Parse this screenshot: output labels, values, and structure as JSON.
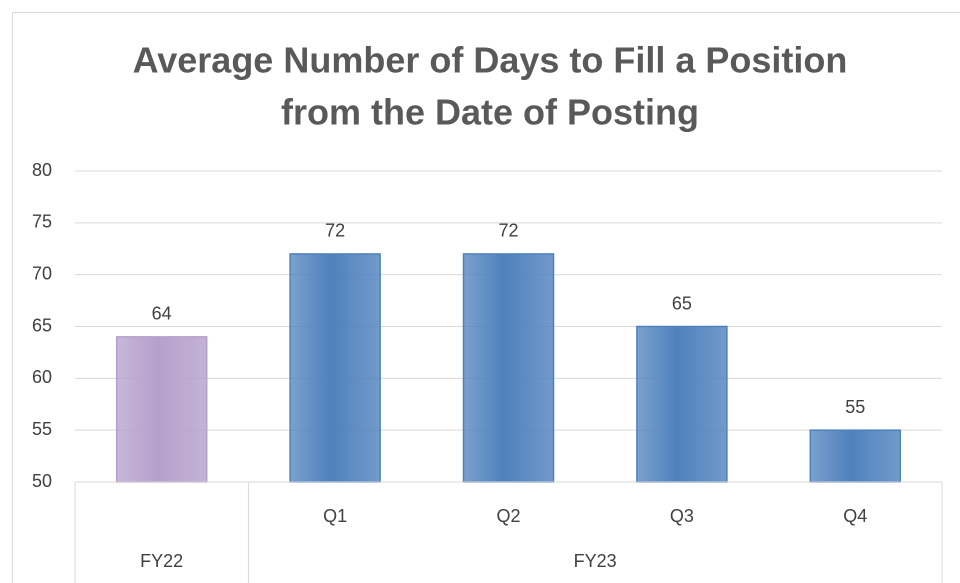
{
  "chart_data": {
    "type": "bar",
    "title": [
      "Average Number of Days to Fill a Position",
      "from the Date of Posting"
    ],
    "categories": [
      null,
      "Q1",
      "Q2",
      "Q3",
      "Q4"
    ],
    "category_groups": [
      {
        "name": "FY22",
        "size": 1
      },
      {
        "name": "FY23",
        "size": 4
      }
    ],
    "values": [
      64,
      72,
      72,
      65,
      55
    ],
    "colors": [
      "#b4a0cc",
      "#4f81bd",
      "#4f81bd",
      "#4f81bd",
      "#4f81bd"
    ],
    "ylim": [
      50,
      80
    ],
    "yticks": [
      50,
      55,
      60,
      65,
      70,
      75,
      80
    ],
    "grid": true
  }
}
